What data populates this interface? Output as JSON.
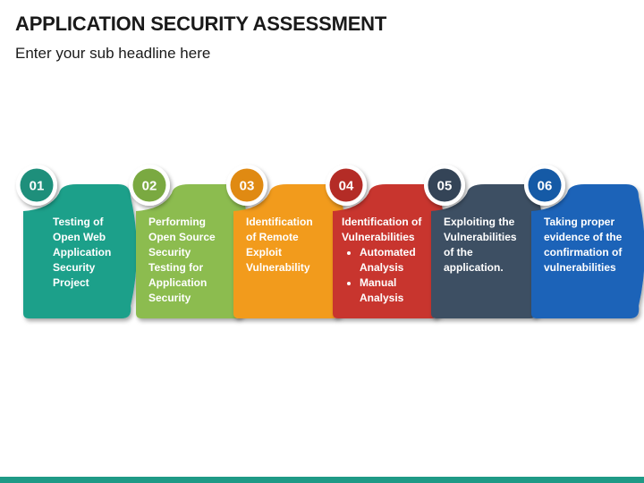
{
  "title": "APPLICATION SECURITY ASSESSMENT",
  "subtitle": "Enter your sub headline here",
  "steps": [
    {
      "number": "01",
      "color": "#1fa08a",
      "badge_color": "#1e8f7b",
      "lines": [
        "Testing of",
        "Open Web",
        "Application",
        "Security",
        "Project"
      ]
    },
    {
      "number": "02",
      "color": "#8cbc4f",
      "badge_color": "#7aa941",
      "lines": [
        "Performing",
        "Open Source",
        "Security",
        "Testing for",
        "Application",
        "Security"
      ]
    },
    {
      "number": "03",
      "color": "#f29b1f",
      "badge_color": "#e08a12",
      "lines": [
        "Identification",
        "of Remote",
        "Exploit",
        "Vulnerability"
      ]
    },
    {
      "number": "04",
      "color": "#c8362f",
      "badge_color": "#b42c26",
      "lines": [
        "Identification of",
        "Vulnerabilities"
      ],
      "bullets": [
        [
          "Automated",
          "Analysis"
        ],
        [
          "Manual",
          "Analysis"
        ]
      ]
    },
    {
      "number": "05",
      "color": "#3e4f63",
      "badge_color": "#344457",
      "lines": [
        "Exploiting the",
        "Vulnerabilities",
        "of the",
        "application."
      ]
    },
    {
      "number": "06",
      "color": "#1a64b8",
      "badge_color": "#155aa6",
      "lines": [
        "Taking proper",
        "evidence of the",
        "confirmation of",
        "vulnerabilities"
      ]
    }
  ],
  "footer_bar_color": "#1f9a86"
}
